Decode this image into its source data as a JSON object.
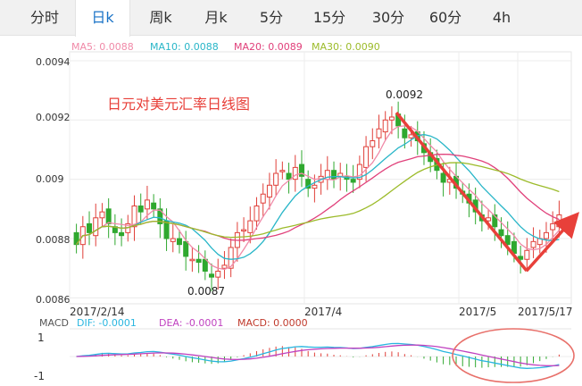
{
  "tabs": [
    {
      "label": "分时",
      "active": false
    },
    {
      "label": "日k",
      "active": true
    },
    {
      "label": "周k",
      "active": false
    },
    {
      "label": "月k",
      "active": false
    },
    {
      "label": "5分",
      "active": false
    },
    {
      "label": "15分",
      "active": false
    },
    {
      "label": "30分",
      "active": false
    },
    {
      "label": "60分",
      "active": false
    },
    {
      "label": "4h",
      "active": false
    }
  ],
  "ma_legend": [
    {
      "text": "MA5: 0.0088",
      "color": "#f08aa8"
    },
    {
      "text": "MA10: 0.0088",
      "color": "#29b6c8"
    },
    {
      "text": "MA20: 0.0089",
      "color": "#e0407a"
    },
    {
      "text": "MA30: 0.0090",
      "color": "#9cbb2a"
    }
  ],
  "macd_legend": {
    "label": "MACD",
    "dif": {
      "text": "DIF: -0.0001",
      "color": "#29b6e0"
    },
    "dea": {
      "text": "DEA: -0.0001",
      "color": "#c042c0"
    },
    "macd": {
      "text": "MACD: 0.0000",
      "color": "#c0392b"
    }
  },
  "colors": {
    "up": "#e0403a",
    "down": "#2fa82f",
    "arrow": "#e8403a",
    "circle": "#e8706a"
  },
  "chart_data": {
    "type": "candlestick",
    "title": "日元对美元汇率日线图",
    "y_ticks": [
      "0.0094",
      "0.0092",
      "0.009",
      "0.0088",
      "0.0086"
    ],
    "ylim": [
      0.00858,
      0.00943
    ],
    "x_ticks": [
      "2017/2/14",
      "2017/4",
      "2017/5",
      "2017/5/17"
    ],
    "annotations": [
      {
        "text": "0.0092",
        "value": 0.00921
      },
      {
        "text": "0.0087",
        "value": 0.00869
      }
    ],
    "macd_ticks": [
      "1",
      "-1"
    ],
    "close": [
      0.00878,
      0.00884,
      0.00882,
      0.00887,
      0.00889,
      0.00885,
      0.00882,
      0.00881,
      0.00885,
      0.00891,
      0.00889,
      0.00893,
      0.0089,
      0.00885,
      0.0088,
      0.0088,
      0.00878,
      0.00874,
      0.00873,
      0.00872,
      0.00869,
      0.00867,
      0.00869,
      0.00871,
      0.00877,
      0.00882,
      0.00883,
      0.00886,
      0.00891,
      0.00895,
      0.00898,
      0.00902,
      0.00903,
      0.009,
      0.00904,
      0.00901,
      0.00897,
      0.00898,
      0.00901,
      0.00903,
      0.009,
      0.00902,
      0.009,
      0.00899,
      0.00905,
      0.00911,
      0.00913,
      0.00917,
      0.0092,
      0.00921,
      0.00918,
      0.00914,
      0.00915,
      0.00913,
      0.00909,
      0.00906,
      0.00903,
      0.00899,
      0.009,
      0.00897,
      0.00895,
      0.00892,
      0.00889,
      0.00886,
      0.00887,
      0.00884,
      0.00881,
      0.00878,
      0.00875,
      0.00873,
      0.00876,
      0.00879,
      0.0088,
      0.00882,
      0.00885,
      0.00888
    ]
  }
}
